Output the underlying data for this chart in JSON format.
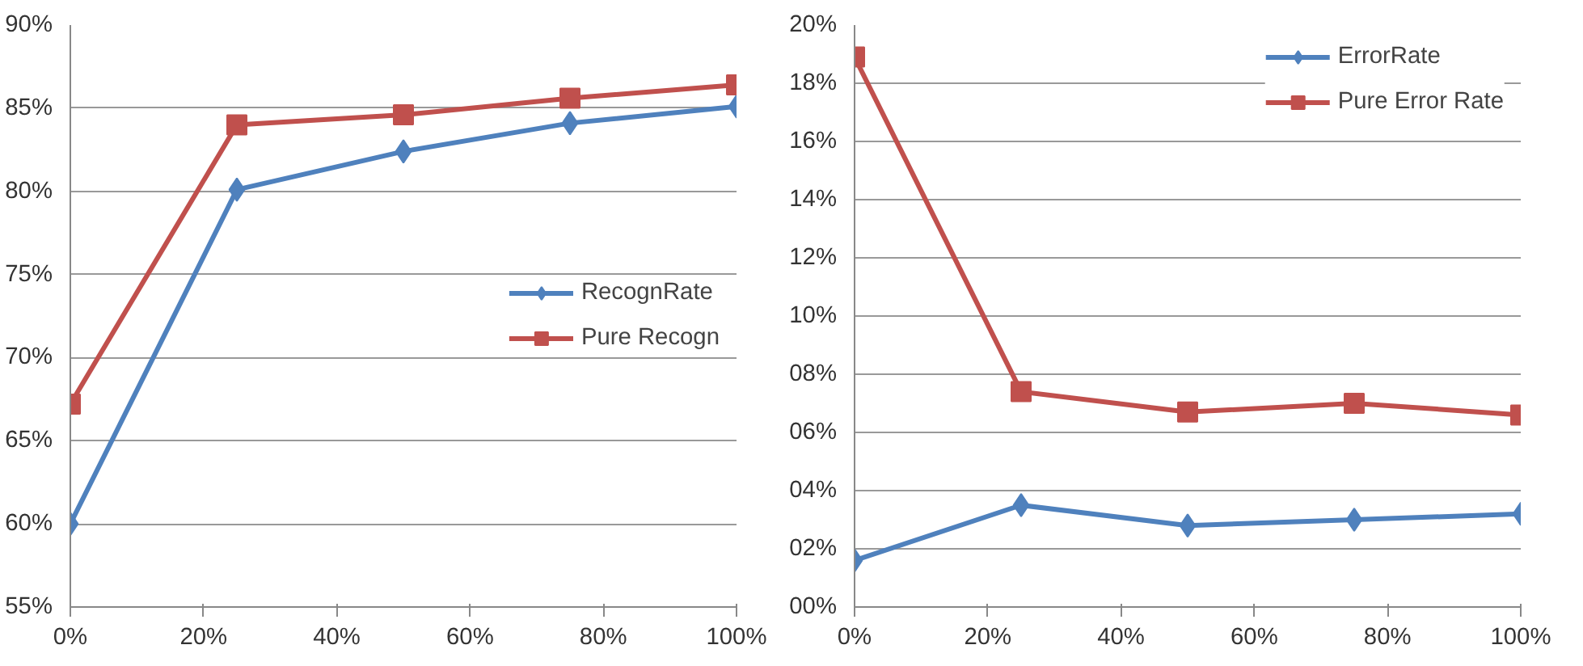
{
  "chart_data": [
    {
      "type": "line",
      "x": [
        0,
        25,
        50,
        75,
        100
      ],
      "xlim": [
        0,
        100
      ],
      "xticks": [
        {
          "value": 0,
          "label": "0%"
        },
        {
          "value": 20,
          "label": "20%"
        },
        {
          "value": 40,
          "label": "40%"
        },
        {
          "value": 60,
          "label": "60%"
        },
        {
          "value": 80,
          "label": "80%"
        },
        {
          "value": 100,
          "label": "100%"
        }
      ],
      "ylim": [
        55,
        90
      ],
      "yticks": [
        {
          "value": 55,
          "label": "55%"
        },
        {
          "value": 60,
          "label": "60%"
        },
        {
          "value": 65,
          "label": "65%"
        },
        {
          "value": 70,
          "label": "70%"
        },
        {
          "value": 75,
          "label": "75%"
        },
        {
          "value": 80,
          "label": "80%"
        },
        {
          "value": 85,
          "label": "85%"
        },
        {
          "value": 90,
          "label": "90%"
        }
      ],
      "grid": "y",
      "legend": "right",
      "series": [
        {
          "name": "RecognRate",
          "color": "#4f81bd",
          "marker": "diamond",
          "values": [
            60.0,
            80.1,
            82.4,
            84.1,
            85.1
          ]
        },
        {
          "name": "Pure Recogn",
          "color": "#c0504d",
          "marker": "square",
          "values": [
            67.2,
            84.0,
            84.6,
            85.6,
            86.4
          ]
        }
      ]
    },
    {
      "type": "line",
      "x": [
        0,
        25,
        50,
        75,
        100
      ],
      "xlim": [
        0,
        100
      ],
      "xticks": [
        {
          "value": 0,
          "label": "0%"
        },
        {
          "value": 20,
          "label": "20%"
        },
        {
          "value": 40,
          "label": "40%"
        },
        {
          "value": 60,
          "label": "60%"
        },
        {
          "value": 80,
          "label": "80%"
        },
        {
          "value": 100,
          "label": "100%"
        }
      ],
      "ylim": [
        0,
        20
      ],
      "yticks": [
        {
          "value": 0,
          "label": "00%"
        },
        {
          "value": 2,
          "label": "02%"
        },
        {
          "value": 4,
          "label": "04%"
        },
        {
          "value": 6,
          "label": "06%"
        },
        {
          "value": 8,
          "label": "08%"
        },
        {
          "value": 10,
          "label": "10%"
        },
        {
          "value": 12,
          "label": "12%"
        },
        {
          "value": 14,
          "label": "14%"
        },
        {
          "value": 16,
          "label": "16%"
        },
        {
          "value": 18,
          "label": "18%"
        },
        {
          "value": 20,
          "label": "20%"
        }
      ],
      "grid": "y",
      "legend": "top right",
      "series": [
        {
          "name": "ErrorRate",
          "color": "#4f81bd",
          "marker": "diamond",
          "values": [
            1.6,
            3.5,
            2.8,
            3.0,
            3.2
          ]
        },
        {
          "name": "Pure Error Rate",
          "color": "#c0504d",
          "marker": "square",
          "values": [
            18.9,
            7.4,
            6.7,
            7.0,
            6.6
          ]
        }
      ]
    }
  ]
}
